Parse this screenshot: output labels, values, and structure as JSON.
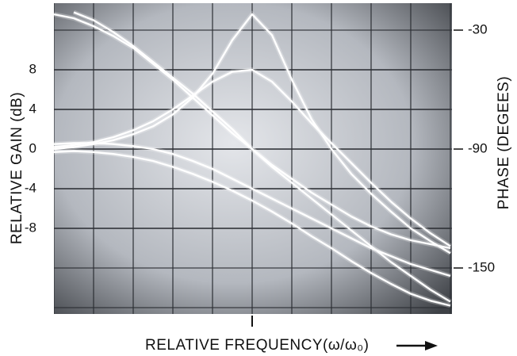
{
  "chart_data": {
    "type": "line",
    "x_label": "RELATIVE FREQUENCY(ω/ω₀)",
    "y_label": "RELATIVE GAIN (dB)",
    "y2_label": "PHASE (DEGEES)",
    "x": [
      0,
      0.5,
      1,
      1.5,
      2,
      2.5,
      3,
      3.5,
      4,
      4.5,
      5,
      5.5,
      6,
      6.5,
      7,
      7.5,
      8,
      8.5,
      9,
      9.5,
      10
    ],
    "xlim": [
      0,
      10
    ],
    "ylim": [
      -16,
      14
    ],
    "yticks": [
      8,
      4,
      0,
      -4,
      -8
    ],
    "y2lim": [
      -170,
      -20
    ],
    "y2ticks": [
      -30,
      -90,
      -150
    ],
    "grid": true,
    "series": [
      {
        "color": "#ffffff",
        "values": [
          0,
          0.2,
          0.5,
          0.9,
          1.5,
          2.3,
          3.5,
          5.2,
          7.6,
          11,
          13.6,
          11.5,
          7,
          3,
          0,
          -2.5,
          -4.5,
          -6.3,
          -8,
          -9.3,
          -10.5
        ]
      },
      {
        "color": "#ffffff",
        "values": [
          0.2,
          0.4,
          0.7,
          1.2,
          1.9,
          2.8,
          4,
          5.4,
          6.8,
          7.8,
          8,
          6.8,
          4.8,
          2.6,
          0.6,
          -1.4,
          -3.4,
          -5.3,
          -7,
          -8.5,
          -9.8
        ]
      },
      {
        "color": "#ffffff",
        "values": [
          0.5,
          0.6,
          0.6,
          0.5,
          0.3,
          0,
          -0.5,
          -1.2,
          -2,
          -3,
          -4,
          -5,
          -6,
          -7,
          -8,
          -9,
          -10,
          -10.8,
          -11.6,
          -12.2,
          -12.8
        ]
      },
      {
        "color": "#ffffff",
        "values": [
          -0.3,
          -0.2,
          -0.3,
          -0.5,
          -0.8,
          -1.2,
          -1.8,
          -2.5,
          -3.3,
          -4.2,
          -5.2,
          -6.3,
          -7.5,
          -8.8,
          -10,
          -11.3,
          -12.5,
          -13.6,
          -14.6,
          -15.3,
          -15.8
        ]
      },
      {
        "color": "#ffffff",
        "axis": "y2",
        "values": [
          null,
          -21,
          -25,
          -31,
          -38,
          -46,
          -54,
          -62,
          -71,
          -80,
          -90,
          -99,
          -107,
          -115,
          -123,
          -131,
          -139,
          -147,
          -154,
          -161,
          -167
        ]
      },
      {
        "color": "#ffffff",
        "axis": "y2",
        "values": [
          -22,
          -24,
          -28,
          -33,
          -39,
          -47,
          -55,
          -64,
          -73,
          -82,
          -90,
          -98,
          -105,
          -112,
          -118,
          -124,
          -129,
          -133,
          -136,
          -138,
          -140
        ]
      }
    ]
  }
}
